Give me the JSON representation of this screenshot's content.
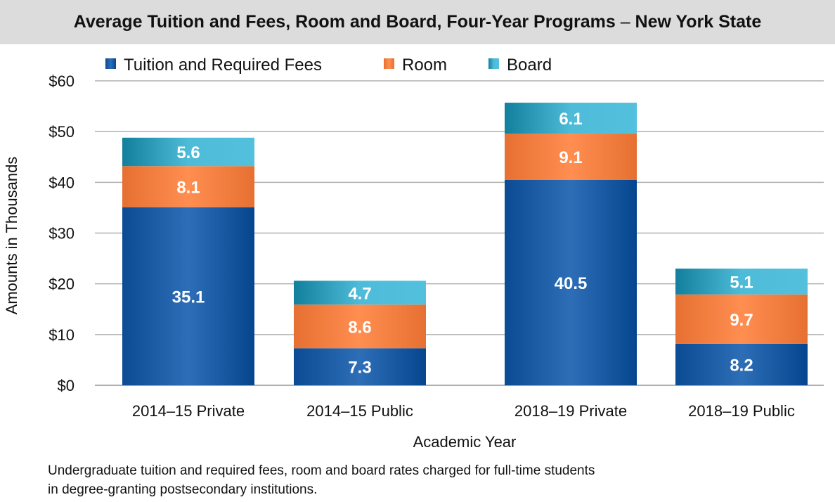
{
  "header": {
    "title_main": "Average Tuition and Fees, Room and Board, Four-Year Programs",
    "title_dash": "–",
    "title_state": "New York State"
  },
  "note": {
    "line1": "Undergraduate tuition and required fees, room and board rates charged for full-time students",
    "line2": "in degree-granting postsecondary institutions."
  },
  "colors": {
    "tuition": "#1e5fa8",
    "room": "#f07a3c",
    "board": "#3aa8c4",
    "grid": "#b0b0b0"
  },
  "chart_data": {
    "type": "bar",
    "stacked": true,
    "title": "Average Tuition and Fees, Room and Board, Four-Year Programs – New York State",
    "xlabel": "Academic Year",
    "ylabel": "Amounts in Thousands",
    "ylim": [
      0,
      60
    ],
    "yticks": [
      0,
      10,
      20,
      30,
      40,
      50,
      60
    ],
    "ytick_labels": [
      "$0",
      "$10",
      "$20",
      "$30",
      "$40",
      "$50",
      "$60"
    ],
    "grid": true,
    "legend_position": "top",
    "categories": [
      "2014–15 Private",
      "2014–15 Public",
      "2018–19 Private",
      "2018–19 Public"
    ],
    "series": [
      {
        "name": "Tuition and Required Fees",
        "color_key": "tuition",
        "values": [
          35.1,
          7.3,
          40.5,
          8.2
        ],
        "labels": [
          "35.1",
          "7.3",
          "40.5",
          "8.2"
        ]
      },
      {
        "name": "Room",
        "color_key": "room",
        "values": [
          8.1,
          8.6,
          9.1,
          9.7
        ],
        "labels": [
          "8.1",
          "8.6",
          "9.1",
          "9.7"
        ]
      },
      {
        "name": "Board",
        "color_key": "board",
        "values": [
          5.6,
          4.7,
          6.1,
          5.1
        ],
        "labels": [
          "5.6",
          "4.7",
          "6.1",
          "5.1"
        ]
      }
    ]
  }
}
